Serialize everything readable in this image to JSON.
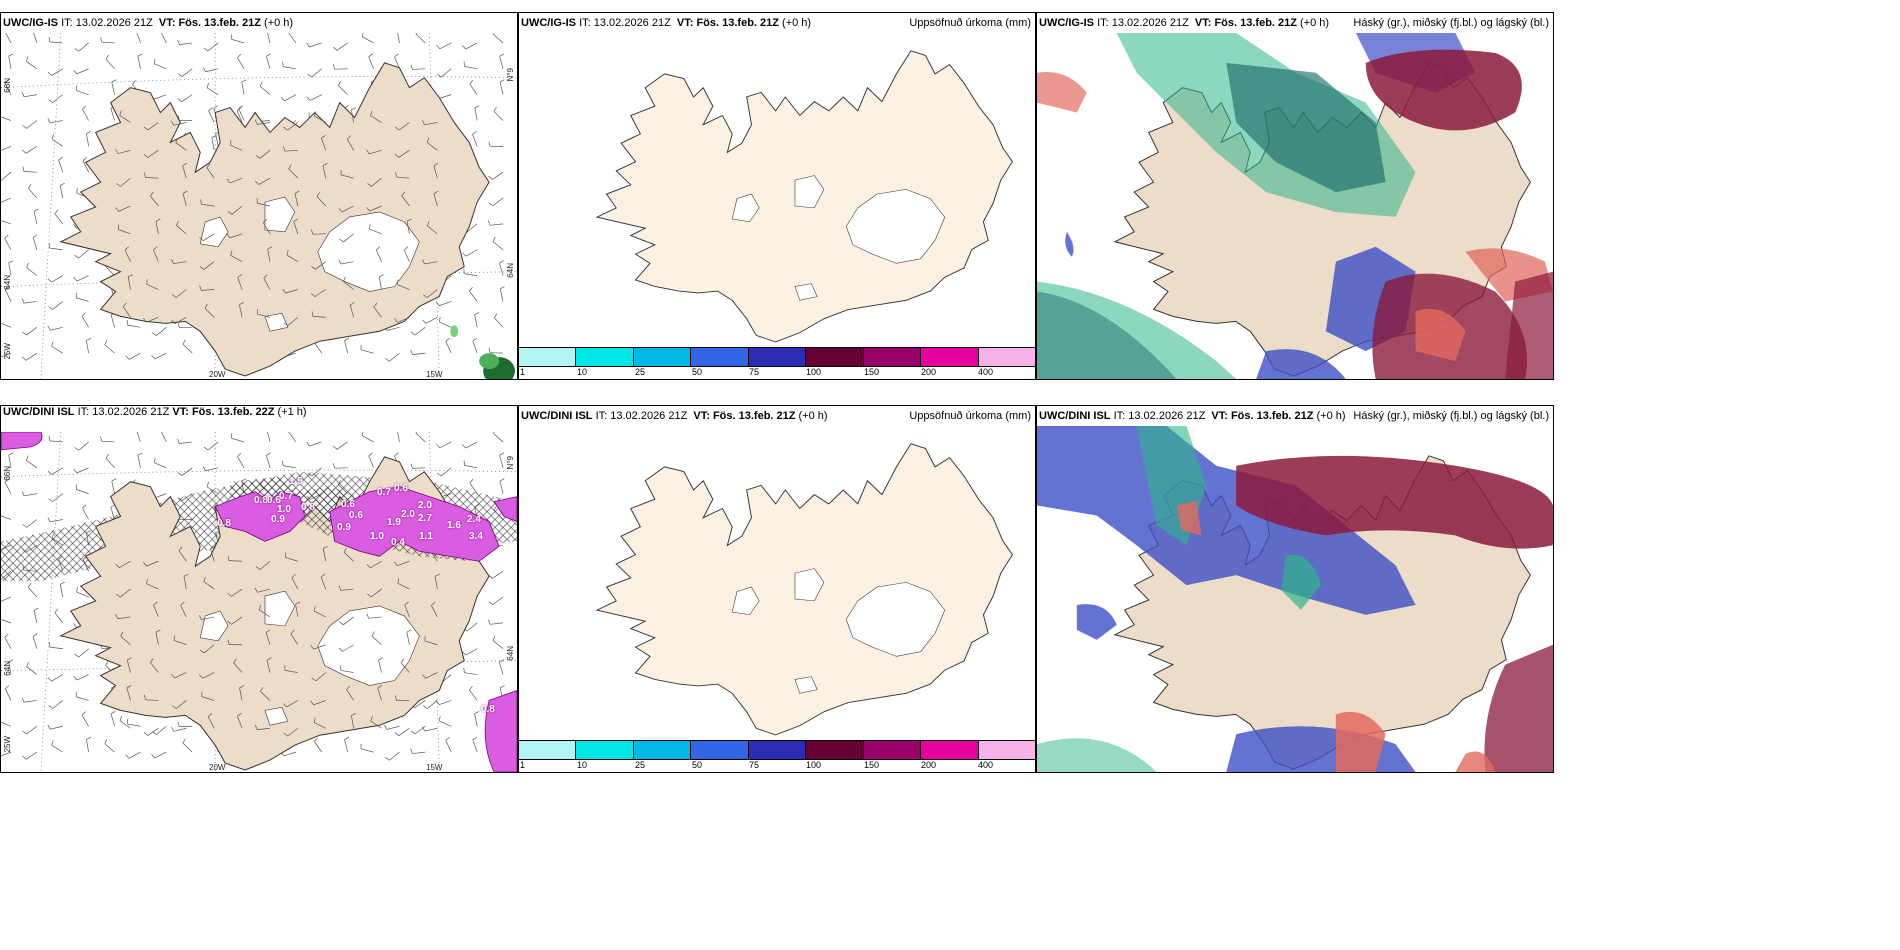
{
  "panels": {
    "p1": {
      "model": "UWC/IG-IS",
      "it_label": "IT:",
      "it_value": "13.02.2026 21Z",
      "vt_label": "VT:",
      "vt_value": "Fös. 13.feb. 21Z",
      "lead": "(+0 h)",
      "field": ""
    },
    "p2": {
      "model": "UWC/IG-IS",
      "it_label": "IT:",
      "it_value": "13.02.2026 21Z",
      "vt_label": "VT:",
      "vt_value": "Fös. 13.feb. 21Z",
      "lead": "(+0 h)",
      "field": "Uppsöfnuð úrkoma (mm)"
    },
    "p3": {
      "model": "UWC/IG-IS",
      "it_label": "IT:",
      "it_value": "13.02.2026 21Z",
      "vt_label": "VT:",
      "vt_value": "Fös. 13.feb. 21Z",
      "lead": "(+0 h)",
      "field": "Háský (gr.), miðský (fj.bl.) og lágský (bl.)"
    },
    "p4": {
      "model": "UWC/DINI ISL",
      "it_label": "IT:",
      "it_value": "13.02.2026 21Z",
      "vt_label": "VT:",
      "vt_value": "Fös. 13.feb. 22Z",
      "lead": "(+1 h)",
      "field": ""
    },
    "p5": {
      "model": "UWC/DINI ISL",
      "it_label": "IT:",
      "it_value": "13.02.2026 21Z",
      "vt_label": "VT:",
      "vt_value": "Fös. 13.feb. 21Z",
      "lead": "(+0 h)",
      "field": "Uppsöfnuð úrkoma (mm)"
    },
    "p6": {
      "model": "UWC/DINI ISL",
      "it_label": "IT:",
      "it_value": "13.02.2026 21Z",
      "vt_label": "VT:",
      "vt_value": "Fös. 13.feb. 21Z",
      "lead": "(+0 h)",
      "field": "Háský (gr.), miðský (fj.bl.) og lágský (bl.)"
    }
  },
  "legend": {
    "colors": [
      "#b3f5f5",
      "#00e5e5",
      "#00b8e6",
      "#3366e6",
      "#2b2bb3",
      "#660033",
      "#99006b",
      "#e600a0",
      "#f5b3ea"
    ],
    "ticks": [
      "1",
      "10",
      "25",
      "50",
      "75",
      "100",
      "150",
      "200",
      "400"
    ]
  },
  "graticule": {
    "lon": [
      "20W",
      "15W"
    ],
    "lat_left": [
      "66N",
      "64N",
      "25W"
    ],
    "lat_right": [
      "66N",
      "64N"
    ],
    "lat_right_top": "N°9"
  },
  "precip_values": [
    "0.8",
    "0.6",
    "0.7",
    "1.5",
    "0.8",
    "0.9",
    "0.6",
    "0.7",
    "0.6",
    "2.0",
    "1.0",
    "0.9",
    "1.9",
    "2.0",
    "2.7",
    "1.6",
    "2.4",
    "0.8",
    "1.0",
    "0.4",
    "1.1",
    "3.4",
    "0.6",
    "0.8"
  ],
  "colors": {
    "land": "#ecdcc8",
    "land_light": "#fdf1e3",
    "precip_magenta": "#d85de0",
    "cloud_high": "#2fb58a",
    "cloud_mid": "#3d4fc6",
    "cloud_low": "#8a1a3c"
  }
}
